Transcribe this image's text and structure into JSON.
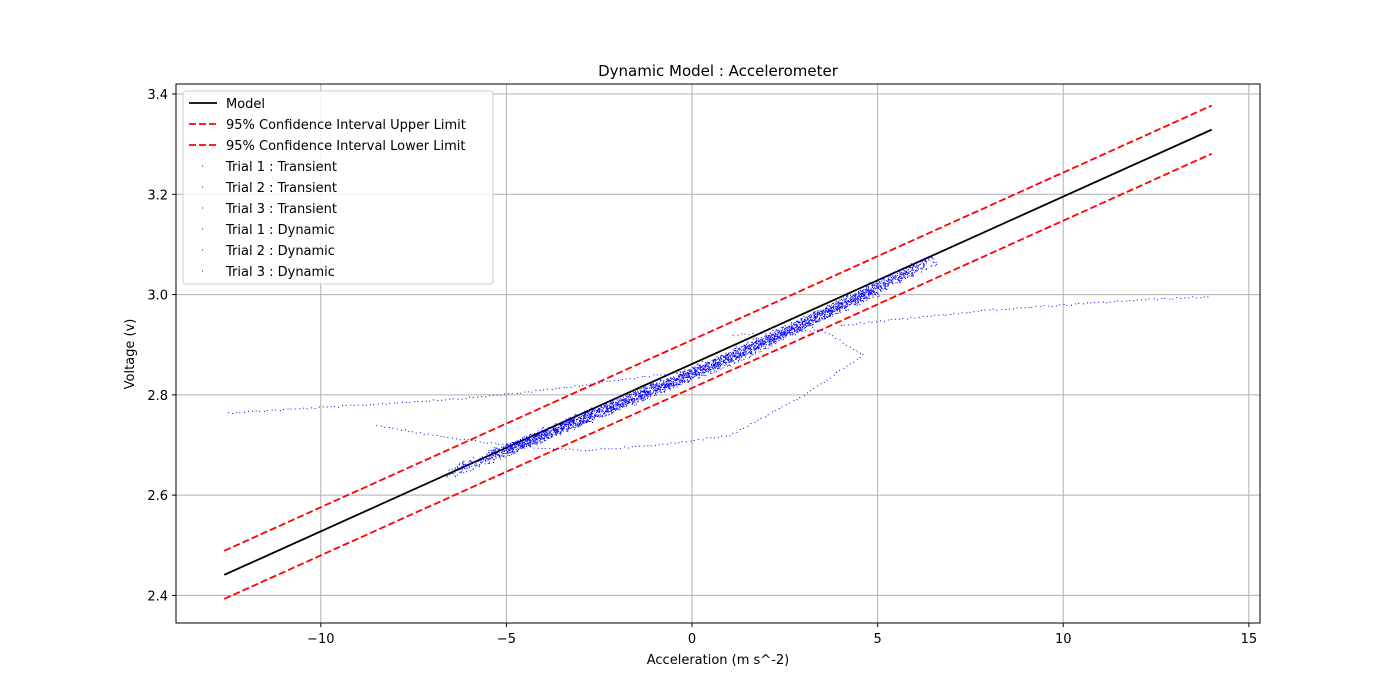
{
  "chart_data": {
    "type": "scatter",
    "title": "Dynamic Model : Accelerometer",
    "xlabel": "Acceleration (m s^-2)",
    "ylabel": "Voltage (v)",
    "xlim": [
      -13.9,
      15.3
    ],
    "ylim": [
      2.345,
      3.42
    ],
    "xticks": [
      -10,
      -5,
      0,
      5,
      10,
      15
    ],
    "xtick_labels": [
      "−10",
      "−5",
      "0",
      "5",
      "10",
      "15"
    ],
    "yticks": [
      2.4,
      2.6,
      2.8,
      3.0,
      3.2,
      3.4
    ],
    "ytick_labels": [
      "2.4",
      "2.6",
      "2.8",
      "3.0",
      "3.2",
      "3.4"
    ],
    "grid": true,
    "legend_position": "top-left",
    "colors": {
      "model": "#000000",
      "ci": "#ff0000",
      "trials": "#0000ff",
      "grid": "#b0b0b0"
    },
    "series": [
      {
        "name": "Model",
        "style": "solid",
        "x": [
          -12.6,
          14.0
        ],
        "y": [
          2.441,
          3.329
        ]
      },
      {
        "name": "95% Confidence Interval Upper Limit",
        "style": "dashed",
        "x": [
          -12.6,
          14.0
        ],
        "y": [
          2.489,
          3.377
        ]
      },
      {
        "name": "95% Confidence Interval Lower Limit",
        "style": "dashed",
        "x": [
          -12.6,
          14.0
        ],
        "y": [
          2.393,
          3.281
        ]
      },
      {
        "name": "Trial 1 : Transient",
        "style": "dots",
        "x": [
          -12.5,
          -9.0,
          -6.0,
          -4.0,
          -2.0,
          0.0
        ],
        "y": [
          2.765,
          2.78,
          2.795,
          2.81,
          2.83,
          2.85
        ]
      },
      {
        "name": "Trial 2 : Transient",
        "style": "dots",
        "x": [
          4.0,
          6.0,
          8.0,
          10.0,
          12.0,
          14.0
        ],
        "y": [
          2.94,
          2.955,
          2.97,
          2.98,
          2.99,
          2.997
        ]
      },
      {
        "name": "Trial 3 : Transient",
        "style": "dots",
        "x": [
          -8.5,
          -7.0,
          -5.0,
          -3.0,
          -1.0,
          1.0,
          3.0,
          4.6,
          3.5,
          1.0
        ],
        "y": [
          2.74,
          2.72,
          2.7,
          2.69,
          2.7,
          2.72,
          2.8,
          2.88,
          2.93,
          2.92
        ]
      },
      {
        "name": "Trial 1 : Dynamic",
        "style": "dots",
        "x": [
          -6.5,
          -5.0,
          -3.0,
          -1.0,
          0.0,
          1.0,
          3.0,
          5.0,
          6.5
        ],
        "y": [
          2.645,
          2.69,
          2.75,
          2.81,
          2.84,
          2.87,
          2.94,
          3.02,
          3.07
        ]
      },
      {
        "name": "Trial 2 : Dynamic",
        "style": "dots",
        "x": [
          -5.5,
          -4.0,
          -2.0,
          0.0,
          2.0,
          4.0,
          6.0
        ],
        "y": [
          2.68,
          2.72,
          2.78,
          2.845,
          2.91,
          2.98,
          3.05
        ]
      },
      {
        "name": "Trial 3 : Dynamic",
        "style": "dots",
        "x": [
          -5.0,
          -3.0,
          -1.0,
          1.0,
          3.0,
          5.0
        ],
        "y": [
          2.69,
          2.755,
          2.815,
          2.875,
          2.945,
          3.01
        ]
      }
    ]
  }
}
